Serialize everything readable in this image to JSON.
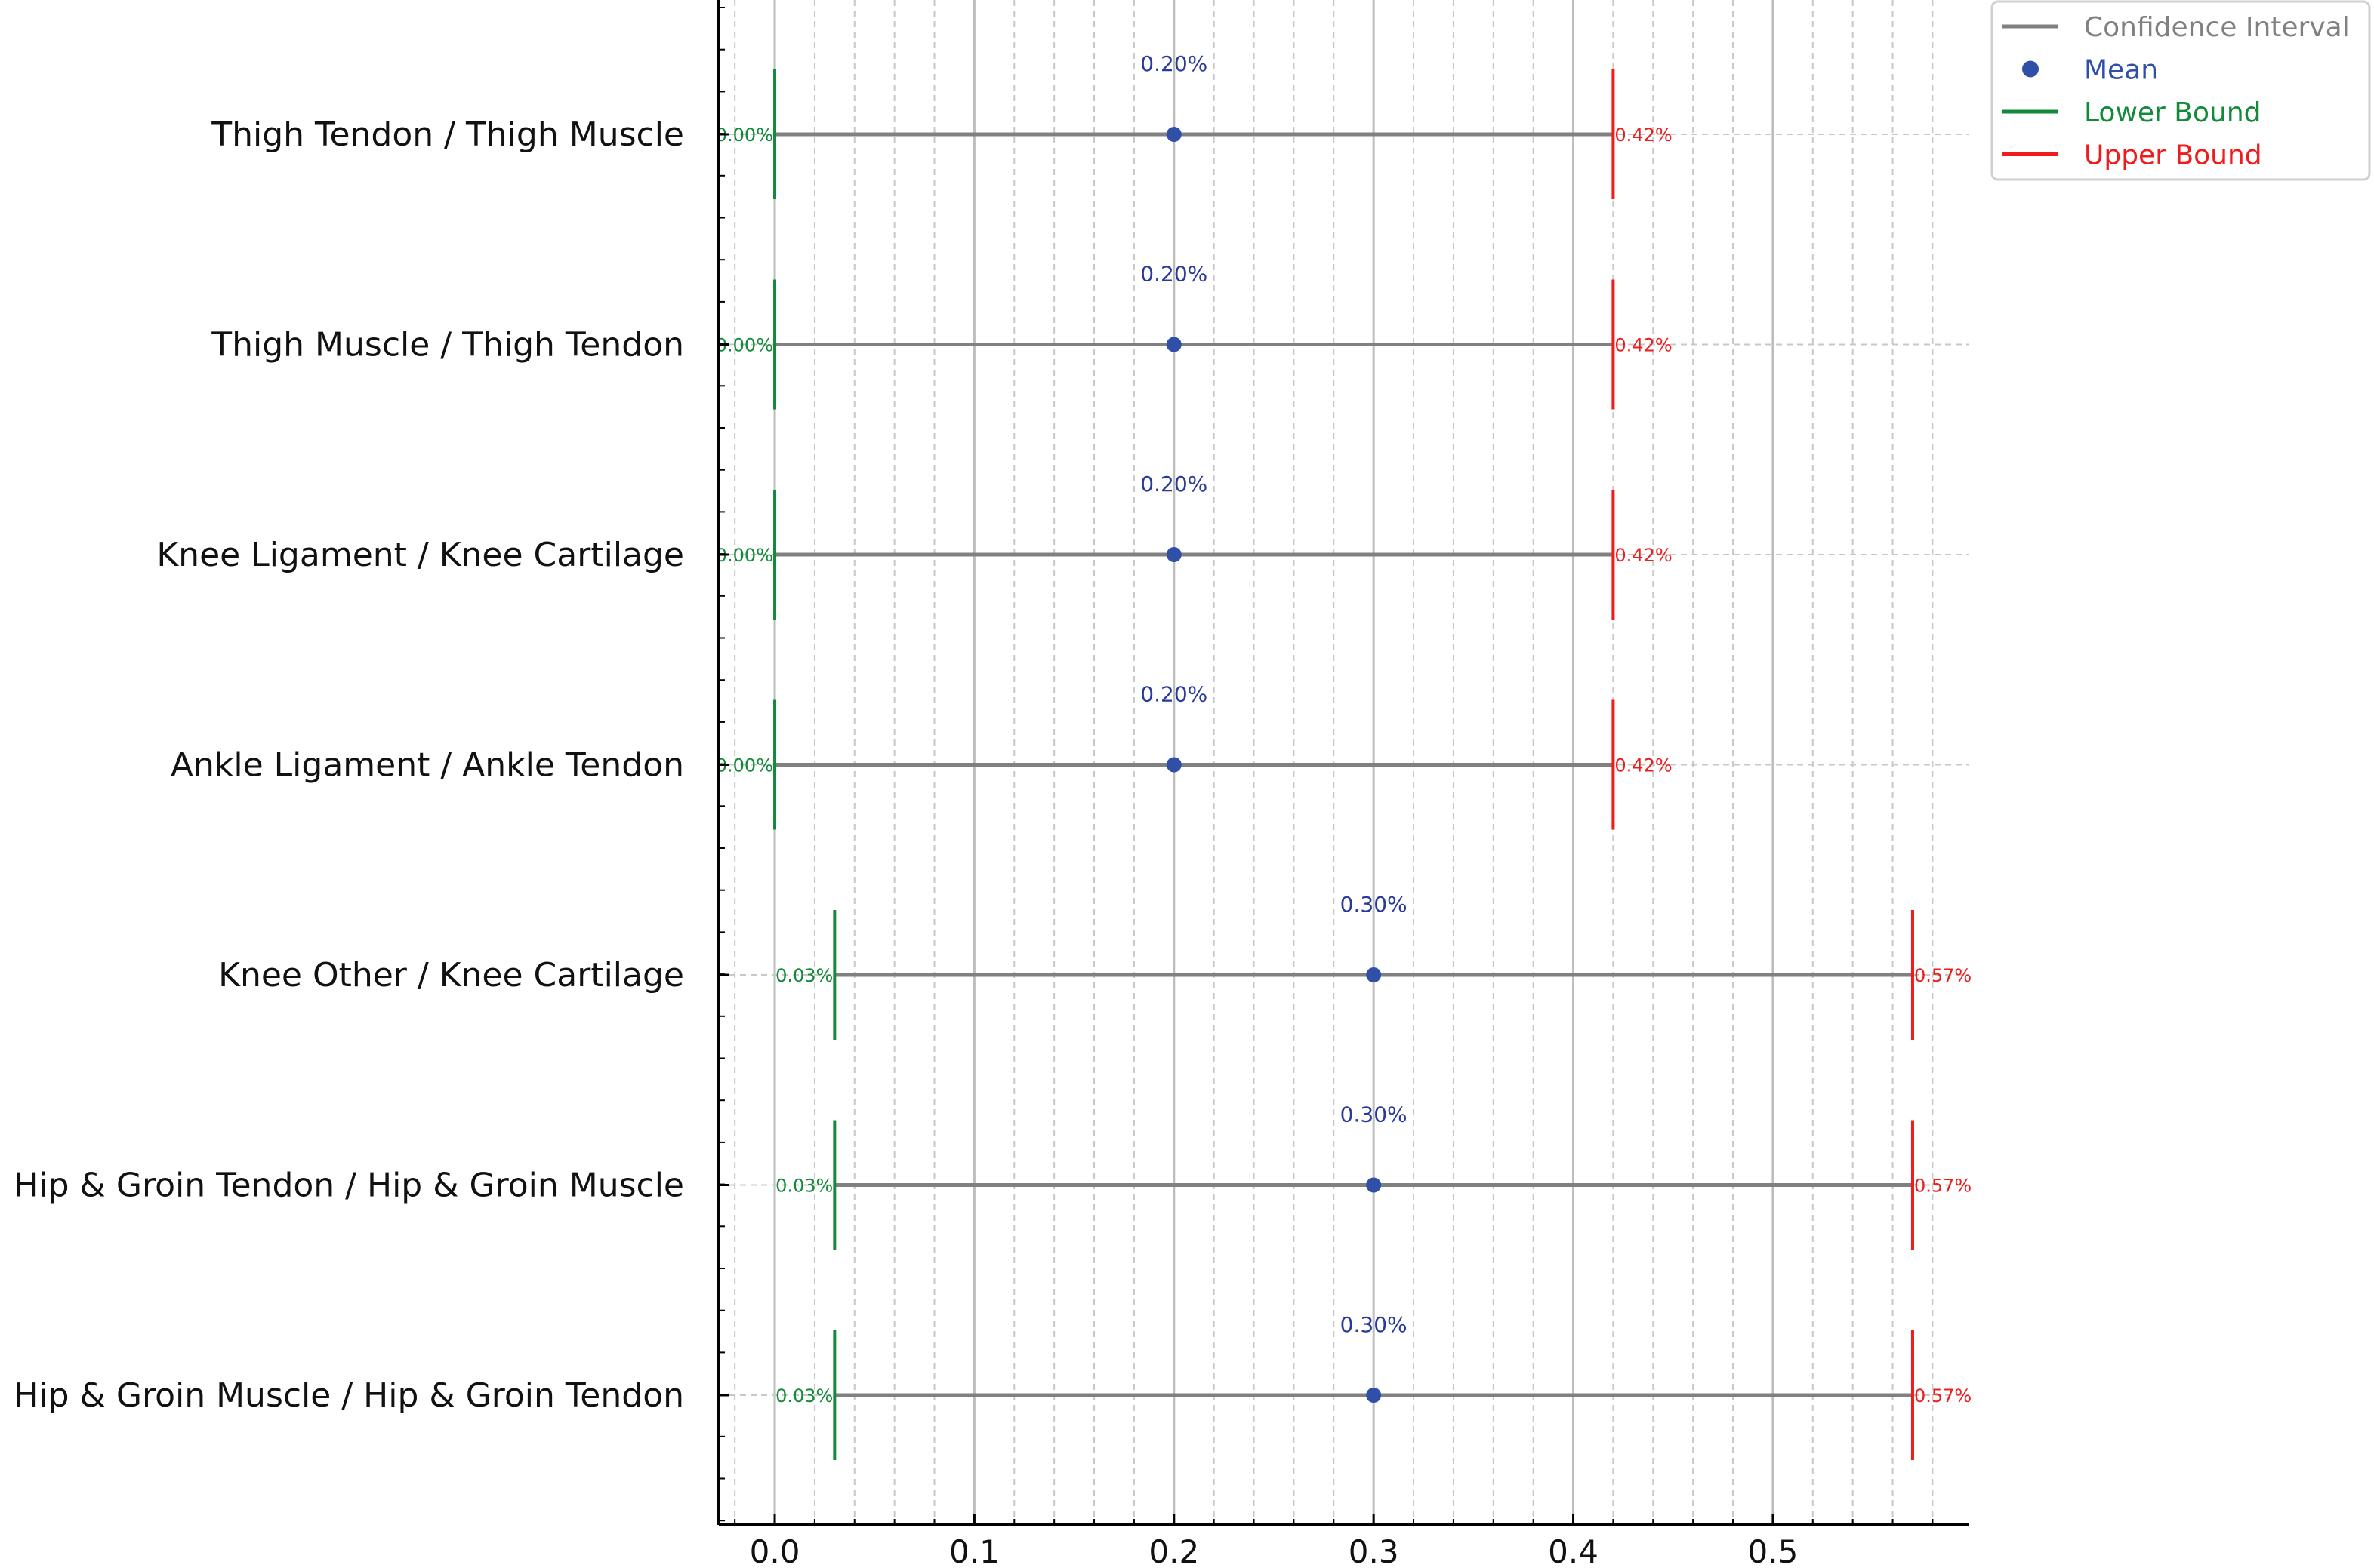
{
  "chart_data": {
    "type": "interval",
    "title": "",
    "xlabel": "",
    "ylabel": "",
    "xlim": [
      -0.028,
      0.598
    ],
    "x_ticks": [
      "0.0",
      "0.1",
      "0.2",
      "0.3",
      "0.4",
      "0.5"
    ],
    "x_tick_values": [
      0.0,
      0.1,
      0.2,
      0.3,
      0.4,
      0.5
    ],
    "grid": true,
    "legend_position": "top-right",
    "legend": [
      {
        "label": "Confidence Interval",
        "kind": "line",
        "color": "#808080"
      },
      {
        "label": "Mean",
        "kind": "marker",
        "color": "#3050a8"
      },
      {
        "label": "Lower Bound",
        "kind": "line",
        "color": "#138a3a"
      },
      {
        "label": "Upper Bound",
        "kind": "line",
        "color": "#f01c1c"
      }
    ],
    "rows": [
      {
        "category": "Thigh Tendon / Thigh Muscle",
        "lower": 0.0,
        "mean": 0.2,
        "upper": 0.42,
        "lower_label": "0.00%",
        "mean_label": "0.20%",
        "upper_label": "0.42%"
      },
      {
        "category": "Thigh Muscle / Thigh Tendon",
        "lower": 0.0,
        "mean": 0.2,
        "upper": 0.42,
        "lower_label": "0.00%",
        "mean_label": "0.20%",
        "upper_label": "0.42%"
      },
      {
        "category": "Knee Ligament / Knee Cartilage",
        "lower": 0.0,
        "mean": 0.2,
        "upper": 0.42,
        "lower_label": "0.00%",
        "mean_label": "0.20%",
        "upper_label": "0.42%"
      },
      {
        "category": "Ankle Ligament / Ankle Tendon",
        "lower": 0.0,
        "mean": 0.2,
        "upper": 0.42,
        "lower_label": "0.00%",
        "mean_label": "0.20%",
        "upper_label": "0.42%"
      },
      {
        "category": "Knee Other / Knee Cartilage",
        "lower": 0.03,
        "mean": 0.3,
        "upper": 0.57,
        "lower_label": "0.03%",
        "mean_label": "0.30%",
        "upper_label": "0.57%"
      },
      {
        "category": "Hip & Groin Tendon / Hip & Groin Muscle",
        "lower": 0.03,
        "mean": 0.3,
        "upper": 0.57,
        "lower_label": "0.03%",
        "mean_label": "0.30%",
        "upper_label": "0.57%"
      },
      {
        "category": "Hip & Groin Muscle / Hip & Groin Tendon",
        "lower": 0.03,
        "mean": 0.3,
        "upper": 0.57,
        "lower_label": "0.03%",
        "mean_label": "0.30%",
        "upper_label": "0.57%"
      }
    ]
  }
}
